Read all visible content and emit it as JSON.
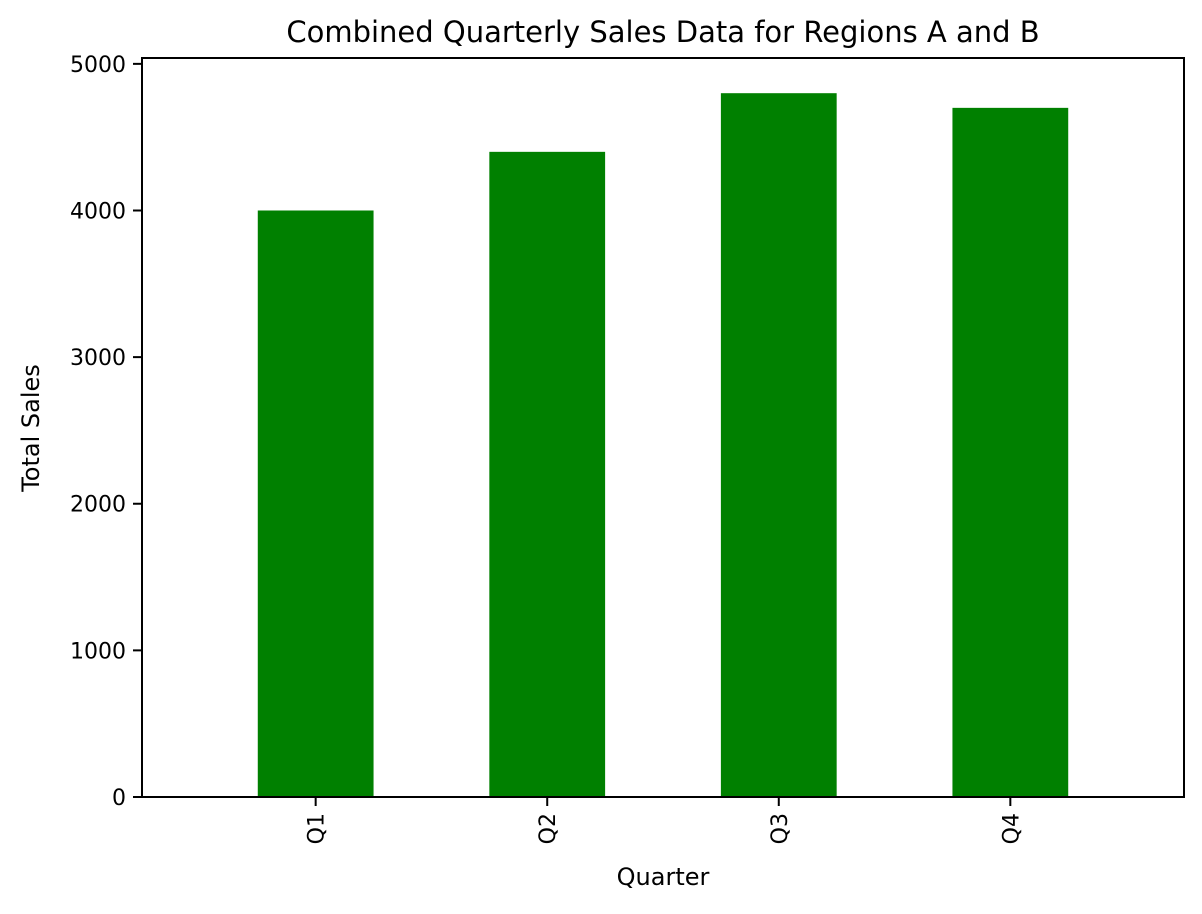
{
  "chart_data": {
    "type": "bar",
    "title": "Combined Quarterly Sales Data for Regions A and B",
    "xlabel": "Quarter",
    "ylabel": "Total Sales",
    "categories": [
      "Q1",
      "Q2",
      "Q3",
      "Q4"
    ],
    "values": [
      4000,
      4400,
      4800,
      4700
    ],
    "ylim": [
      0,
      5040
    ],
    "yticks": [
      0,
      1000,
      2000,
      3000,
      4000,
      5000
    ],
    "ytick_labels": [
      "0",
      "1000",
      "2000",
      "3000",
      "4000",
      "5000"
    ],
    "x_tick_rotation": "vertical",
    "grid": false,
    "legend": "none",
    "bar_color": "#008000"
  }
}
